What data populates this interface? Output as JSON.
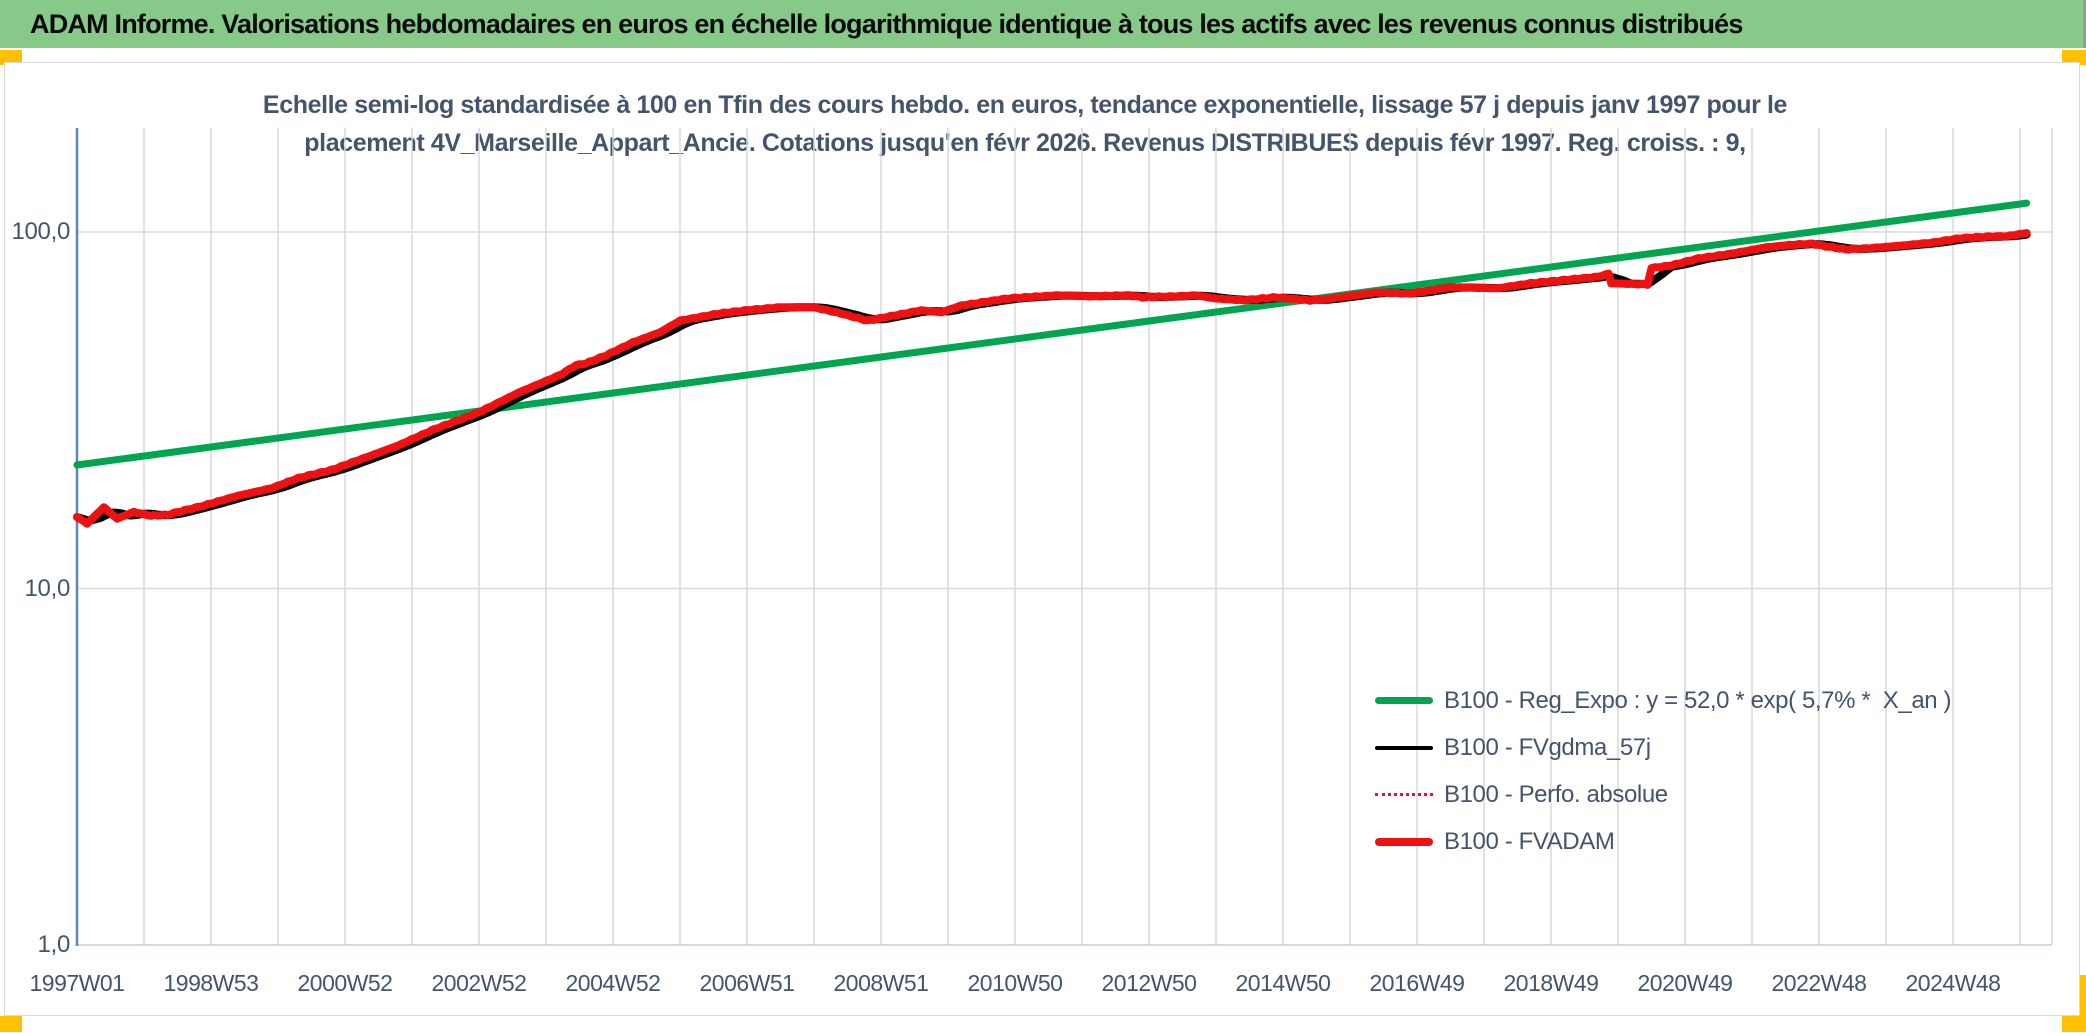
{
  "header": {
    "title": "ADAM Informe. Valorisations hebdomadaires en euros en échelle logarithmique identique à tous les actifs avec les revenus connus distribués"
  },
  "chart": {
    "subtitle_line1": "Echelle semi-log standardisée à 100 en Tfin des cours hebdo. en euros, tendance exponentielle, lissage 57 j depuis janv 1997 pour le",
    "subtitle_line2": "placement 4V_Marseille_Appart_Ancie. Cotations jusqu'en févr 2026. Revenus DISTRIBUES depuis févr 1997. Reg. croiss. : 9,"
  },
  "colors": {
    "header_green": "#86C989",
    "header_text": "#0b0b0b",
    "text_blue_grey": "#44546A",
    "grid": "#D9D9D9",
    "axis_blue": "#5B84C0",
    "gold": "#FFC000",
    "line_green": "#00A550",
    "line_red": "#EE1111",
    "line_black": "#000000",
    "dotted_red": "#E8112D"
  },
  "chart_data": {
    "type": "line",
    "y_scale": "log",
    "ylim": [
      1,
      200
    ],
    "grid": true,
    "legend_position": "right-center",
    "y_ticks": [
      {
        "label": "100,0",
        "value": 100
      },
      {
        "label": "10,0",
        "value": 10
      },
      {
        "label": "1,0",
        "value": 1
      }
    ],
    "x_ticks": [
      {
        "label": "1997W01",
        "year": 1997
      },
      {
        "label": "1998W53",
        "year": 1999
      },
      {
        "label": "2000W52",
        "year": 2001
      },
      {
        "label": "2002W52",
        "year": 2003
      },
      {
        "label": "2004W52",
        "year": 2005
      },
      {
        "label": "2006W51",
        "year": 2007
      },
      {
        "label": "2008W51",
        "year": 2009
      },
      {
        "label": "2010W50",
        "year": 2011
      },
      {
        "label": "2012W50",
        "year": 2013
      },
      {
        "label": "2014W50",
        "year": 2015
      },
      {
        "label": "2016W49",
        "year": 2017
      },
      {
        "label": "2018W49",
        "year": 2019
      },
      {
        "label": "2020W49",
        "year": 2021
      },
      {
        "label": "2022W48",
        "year": 2023
      },
      {
        "label": "2024W48",
        "year": 2025
      }
    ],
    "x_grid_step_years": 1,
    "series": [
      {
        "name": "B100 - Reg_Expo : y = 52,0 * exp( 5,7% *  X_an )",
        "color": "#00A550",
        "width": 7,
        "style": "solid",
        "legend_swatch_height": 7,
        "points": [
          [
            1997.0,
            22.2
          ],
          [
            2026.1,
            120.5
          ]
        ]
      },
      {
        "name": "B100 - FVgdma_57j",
        "color": "#000000",
        "width": 8,
        "style": "solid",
        "legend_swatch_height": 4,
        "derived": "smooth_of_fvadam"
      },
      {
        "name": "B100 - Perfo. absolue",
        "color": "#E8112D",
        "width": 2.5,
        "style": "dotted",
        "legend_swatch_height": 3,
        "derived": "copy_of_fvadam"
      },
      {
        "name": "B100 - FVADAM",
        "color": "#EE1111",
        "width": 8,
        "style": "solid",
        "legend_swatch_height": 8,
        "points": [
          [
            1997.0,
            15.9
          ],
          [
            1997.15,
            15.2
          ],
          [
            1997.4,
            16.9
          ],
          [
            1997.6,
            15.7
          ],
          [
            1997.85,
            16.4
          ],
          [
            1998.1,
            16.0
          ],
          [
            1998.35,
            16.1
          ],
          [
            1998.9,
            17.1
          ],
          [
            1999.4,
            18.2
          ],
          [
            1999.9,
            19.1
          ],
          [
            2000.3,
            20.4
          ],
          [
            2000.8,
            21.5
          ],
          [
            2001.2,
            22.9
          ],
          [
            2001.8,
            25.2
          ],
          [
            2002.3,
            27.8
          ],
          [
            2003.0,
            31.2
          ],
          [
            2003.6,
            35.5
          ],
          [
            2004.2,
            39.6
          ],
          [
            2004.45,
            42.3
          ],
          [
            2004.6,
            42.8
          ],
          [
            2004.9,
            45.1
          ],
          [
            2005.3,
            49.0
          ],
          [
            2005.7,
            52.3
          ],
          [
            2006.0,
            56.4
          ],
          [
            2006.6,
            59.1
          ],
          [
            2007.0,
            60.3
          ],
          [
            2007.5,
            61.5
          ],
          [
            2008.0,
            61.5
          ],
          [
            2008.4,
            59.1
          ],
          [
            2008.8,
            56.4
          ],
          [
            2009.2,
            58.3
          ],
          [
            2009.6,
            60.3
          ],
          [
            2009.9,
            59.5
          ],
          [
            2010.2,
            62.2
          ],
          [
            2010.9,
            65.1
          ],
          [
            2011.6,
            66.4
          ],
          [
            2012.1,
            66.0
          ],
          [
            2012.7,
            66.4
          ],
          [
            2012.9,
            65.6
          ],
          [
            2013.4,
            66.0
          ],
          [
            2013.7,
            66.4
          ],
          [
            2014.0,
            65.1
          ],
          [
            2014.4,
            64.3
          ],
          [
            2014.9,
            65.6
          ],
          [
            2015.4,
            64.3
          ],
          [
            2015.6,
            64.7
          ],
          [
            2016.4,
            67.7
          ],
          [
            2016.9,
            67.2
          ],
          [
            2017.5,
            70.0
          ],
          [
            2018.2,
            69.5
          ],
          [
            2018.7,
            71.8
          ],
          [
            2019.2,
            73.3
          ],
          [
            2019.7,
            74.9
          ],
          [
            2019.86,
            76.3
          ],
          [
            2019.9,
            71.8
          ],
          [
            2020.44,
            71.3
          ],
          [
            2020.5,
            79.2
          ],
          [
            2020.8,
            80.6
          ],
          [
            2021.2,
            84.3
          ],
          [
            2021.7,
            87.0
          ],
          [
            2022.2,
            90.5
          ],
          [
            2022.6,
            92.1
          ],
          [
            2022.9,
            92.7
          ],
          [
            2023.05,
            91.5
          ],
          [
            2023.4,
            89.4
          ],
          [
            2023.7,
            89.9
          ],
          [
            2024.2,
            91.5
          ],
          [
            2024.7,
            93.4
          ],
          [
            2025.1,
            96.0
          ],
          [
            2025.5,
            97.0
          ],
          [
            2025.8,
            97.3
          ],
          [
            2026.1,
            99.3
          ]
        ]
      }
    ]
  }
}
